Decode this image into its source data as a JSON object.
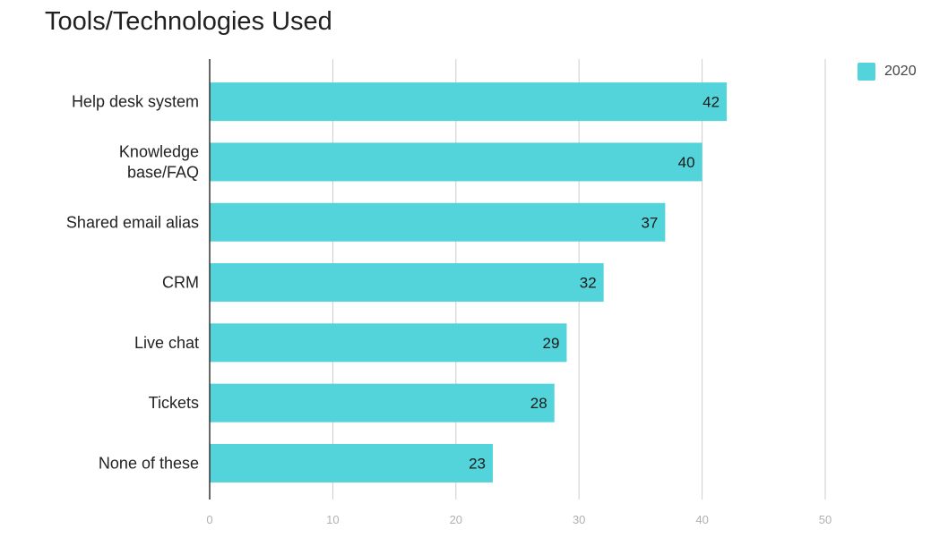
{
  "chart_data": {
    "type": "bar",
    "orientation": "horizontal",
    "title": "Tools/Technologies Used",
    "categories": [
      [
        "Help desk system"
      ],
      [
        "Knowledge",
        "base/FAQ"
      ],
      [
        "Shared email alias"
      ],
      [
        "CRM"
      ],
      [
        "Live chat"
      ],
      [
        "Tickets"
      ],
      [
        "None of these"
      ]
    ],
    "series": [
      {
        "name": "2020",
        "values": [
          42,
          40,
          37,
          32,
          29,
          28,
          23
        ]
      }
    ],
    "xlim": [
      0,
      50
    ],
    "xticks": [
      "0",
      "10",
      "20",
      "30",
      "40",
      "50"
    ],
    "grid": true,
    "legend_position": "top-right",
    "bar_color": "#53d3da",
    "grid_color": "#cccccc",
    "axis_color": "#333333"
  }
}
